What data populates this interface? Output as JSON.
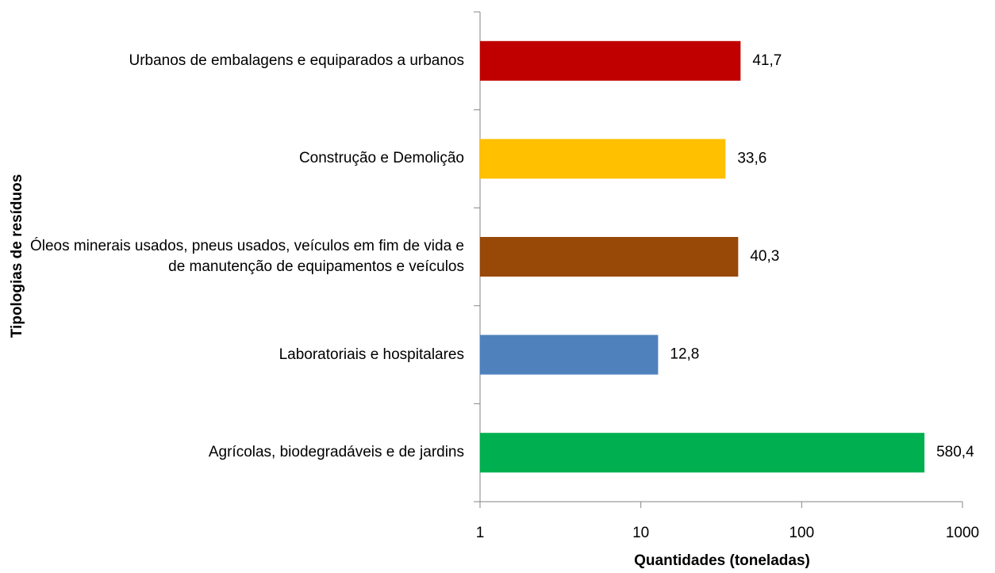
{
  "chart_data": {
    "type": "bar",
    "orientation": "horizontal",
    "x_label": "Quantidades (toneladas)",
    "y_label": "Tipologias de resíduos",
    "categories": [
      "Urbanos de embalagens e equiparados a urbanos",
      "Construção e Demolição",
      "Óleos minerais usados, pneus usados, veículos em fim de vida e de manutenção de equipamentos e veículos",
      "Laboratoriais e hospitalares",
      "Agrícolas, biodegradáveis e de jardins"
    ],
    "values": [
      41.7,
      33.6,
      40.3,
      12.8,
      580.4
    ],
    "value_labels": [
      "41,7",
      "33,6",
      "40,3",
      "12,8",
      "580,4"
    ],
    "colors": [
      "#c00000",
      "#ffc000",
      "#984807",
      "#4f81bd",
      "#00b050"
    ],
    "xscale": "log",
    "xlim": [
      1,
      1000
    ],
    "xticks": [
      1,
      10,
      100,
      1000
    ]
  }
}
